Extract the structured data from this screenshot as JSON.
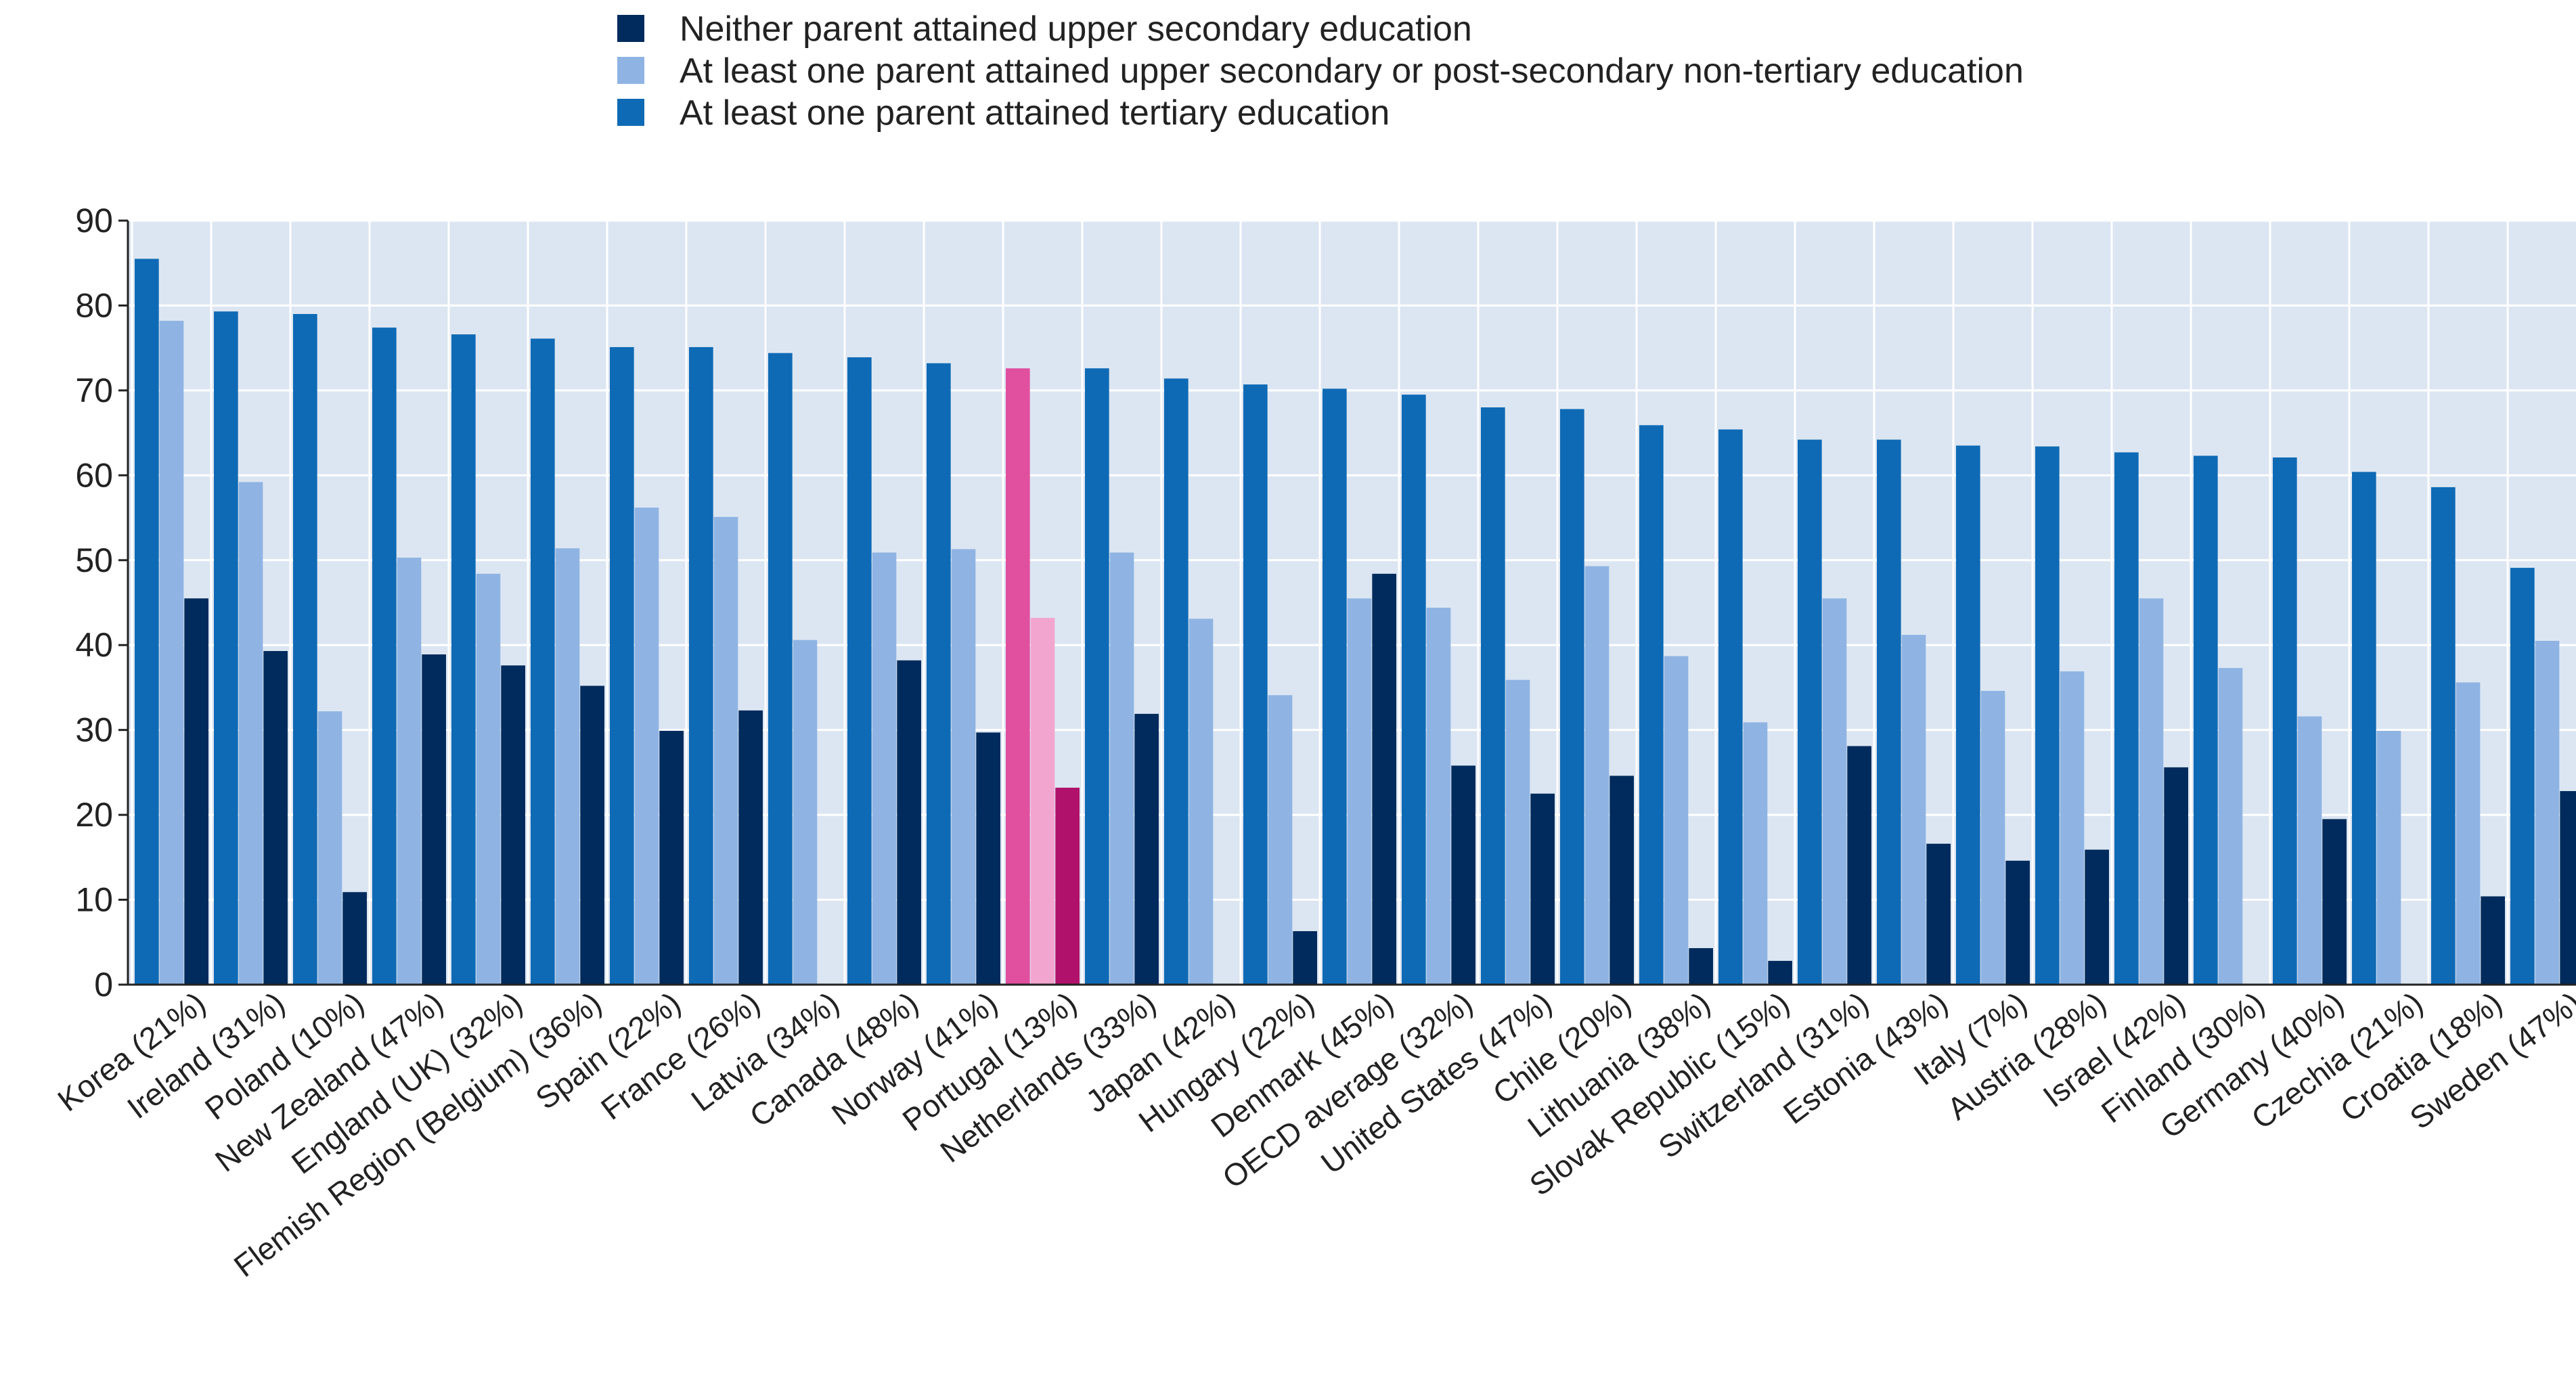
{
  "chart_data": {
    "type": "bar",
    "title": "",
    "xlabel": "",
    "ylabel": "",
    "ylim": [
      0,
      90
    ],
    "yticks": [
      0,
      10,
      20,
      30,
      40,
      50,
      60,
      70,
      80,
      90
    ],
    "grid": true,
    "legend_position": "top",
    "highlight_category": "Portugal (13%)",
    "categories": [
      "Korea (21%)",
      "Ireland (31%)",
      "Poland (10%)",
      "New Zealand (47%)",
      "England (UK) (32%)",
      "Flemish Region (Belgium) (36%)",
      "Spain (22%)",
      "France (26%)",
      "Latvia (34%)",
      "Canada (48%)",
      "Norway (41%)",
      "Portugal (13%)",
      "Netherlands (33%)",
      "Japan (42%)",
      "Hungary (22%)",
      "Denmark (45%)",
      "OECD average (32%)",
      "United States (47%)",
      "Chile (20%)",
      "Lithuania (38%)",
      "Slovak Republic (15%)",
      "Switzerland (31%)",
      "Estonia (43%)",
      "Italy (7%)",
      "Austria (28%)",
      "Israel (42%)",
      "Finland (30%)",
      "Germany (40%)",
      "Czechia (21%)",
      "Croatia (18%)",
      "Sweden (47%)"
    ],
    "series": [
      {
        "name": "Neither parent attained upper secondary education",
        "color": "#002b5c",
        "highlight_color": "#b0126b",
        "values": [
          45.5,
          39.3,
          10.9,
          38.9,
          37.6,
          35.2,
          29.9,
          32.3,
          null,
          38.2,
          29.7,
          23.2,
          31.9,
          null,
          6.3,
          48.4,
          25.8,
          22.5,
          24.6,
          4.3,
          2.8,
          28.1,
          16.6,
          14.6,
          15.9,
          25.6,
          null,
          19.5,
          null,
          10.4,
          22.8
        ]
      },
      {
        "name": "At least one parent attained upper secondary or post-secondary non-tertiary education",
        "color": "#8fb4e3",
        "highlight_color": "#f2a6cf",
        "values": [
          78.2,
          59.2,
          32.2,
          50.3,
          48.4,
          51.4,
          56.2,
          55.1,
          40.6,
          50.9,
          51.3,
          43.2,
          50.9,
          43.1,
          34.1,
          45.5,
          44.4,
          35.9,
          49.3,
          38.7,
          30.9,
          45.5,
          41.2,
          34.6,
          36.9,
          45.5,
          37.3,
          31.6,
          29.9,
          35.6,
          40.5
        ]
      },
      {
        "name": "At least one parent attained tertiary education",
        "color": "#0f6ab5",
        "highlight_color": "#e0509f",
        "values": [
          85.5,
          79.3,
          79.0,
          77.4,
          76.6,
          76.1,
          75.1,
          75.1,
          74.4,
          73.9,
          73.2,
          72.6,
          72.6,
          71.4,
          70.7,
          70.2,
          69.5,
          68.0,
          67.8,
          65.9,
          65.4,
          64.2,
          64.2,
          63.5,
          63.4,
          62.7,
          62.3,
          62.1,
          60.4,
          58.6,
          49.1
        ]
      }
    ]
  }
}
